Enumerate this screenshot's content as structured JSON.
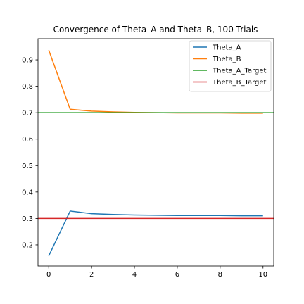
{
  "chart_data": {
    "type": "line",
    "title": "Convergence of Theta_A and Theta_B, 100 Trials",
    "xlabel": "",
    "ylabel": "",
    "xlim": [
      -0.5,
      10.5
    ],
    "ylim": [
      0.12,
      0.98
    ],
    "xticks": [
      0,
      2,
      4,
      6,
      8,
      10
    ],
    "yticks": [
      0.2,
      0.3,
      0.4,
      0.5,
      0.6,
      0.7,
      0.8,
      0.9
    ],
    "x": [
      0,
      1,
      2,
      3,
      4,
      5,
      6,
      7,
      8,
      9,
      10
    ],
    "series": [
      {
        "name": "Theta_A",
        "color": "#1f77b4",
        "values": [
          0.158,
          0.328,
          0.318,
          0.315,
          0.313,
          0.312,
          0.311,
          0.311,
          0.311,
          0.31,
          0.31
        ]
      },
      {
        "name": "Theta_B",
        "color": "#ff7f0e",
        "values": [
          0.937,
          0.713,
          0.706,
          0.703,
          0.701,
          0.7,
          0.699,
          0.699,
          0.699,
          0.698,
          0.698
        ]
      }
    ],
    "hlines": [
      {
        "name": "Theta_A_Target",
        "color": "#2ca02c",
        "y": 0.7
      },
      {
        "name": "Theta_B_Target",
        "color": "#d62728",
        "y": 0.3
      }
    ],
    "legend": {
      "placement": "top-right",
      "entries": [
        "Theta_A",
        "Theta_B",
        "Theta_A_Target",
        "Theta_B_Target"
      ]
    },
    "grid": false
  }
}
